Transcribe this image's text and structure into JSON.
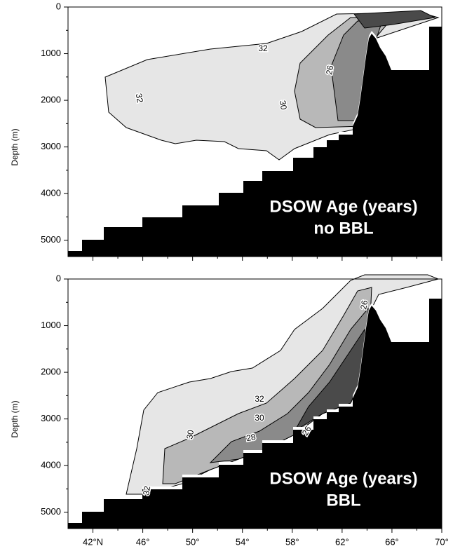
{
  "chart_data": [
    {
      "type": "contour",
      "ylabel": "Depth (m)",
      "annotation": [
        "DSOW Age (years)",
        "no BBL"
      ],
      "ylim": [
        0,
        5350
      ],
      "yticks": [
        0,
        1000,
        2000,
        3000,
        4000,
        5000
      ],
      "yminor_ticks": [
        500,
        1500,
        2500,
        3500,
        4500
      ],
      "xlim": [
        40,
        70
      ],
      "xticks": [
        42,
        46,
        50,
        54,
        58,
        62,
        66,
        70
      ],
      "xminor_ticks": [
        44,
        48,
        52,
        56,
        60,
        64,
        68
      ],
      "contour_labels": [
        32,
        32,
        26,
        30
      ]
    },
    {
      "type": "contour",
      "ylabel": "Depth (m)",
      "annotation": [
        "DSOW Age (years)",
        "BBL"
      ],
      "ylim": [
        0,
        5350
      ],
      "yticks": [
        0,
        1000,
        2000,
        3000,
        4000,
        5000
      ],
      "yminor_ticks": [
        500,
        1500,
        2500,
        3500,
        4500
      ],
      "xlim": [
        40,
        70
      ],
      "xticks": [
        {
          "value": 42,
          "label": "42°N"
        },
        {
          "value": 46,
          "label": "46°"
        },
        {
          "value": 50,
          "label": "50°"
        },
        {
          "value": 54,
          "label": "54°"
        },
        {
          "value": 58,
          "label": "58°"
        },
        {
          "value": 62,
          "label": "62°"
        },
        {
          "value": 66,
          "label": "66°"
        },
        {
          "value": 70,
          "label": "70°"
        }
      ],
      "xminor_ticks": [
        44,
        48,
        52,
        56,
        60,
        64,
        68
      ],
      "contour_labels": [
        32,
        30,
        30,
        28,
        26,
        26,
        32
      ]
    }
  ]
}
